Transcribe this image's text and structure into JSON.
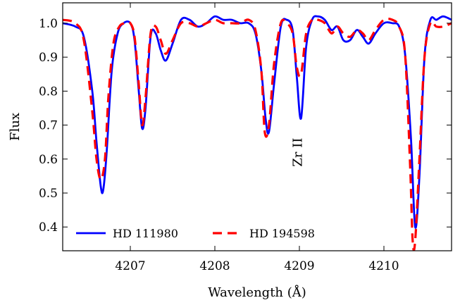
{
  "chart_data": {
    "type": "line",
    "xlabel": "Wavelength (Å)",
    "ylabel": "Flux",
    "xlim": [
      4206.2,
      4210.8
    ],
    "ylim": [
      0.33,
      1.06
    ],
    "xticks": [
      4207,
      4208,
      4209,
      4210
    ],
    "xtick_labels": [
      "4207",
      "4208",
      "4209",
      "4210"
    ],
    "yticks": [
      0.4,
      0.5,
      0.6,
      0.7,
      0.8,
      0.9,
      1.0
    ],
    "ytick_labels": [
      "0.4",
      "0.5",
      "0.6",
      "0.7",
      "0.8",
      "0.9",
      "1.0"
    ],
    "grid": false,
    "legend_position": "bottom",
    "annotation": {
      "text": "Zr II",
      "x": 4208.98,
      "y": 0.62
    },
    "series": [
      {
        "name": "HD 111980",
        "color": "#0000ff",
        "style": "solid",
        "x": [
          4206.2,
          4206.35,
          4206.45,
          4206.55,
          4206.6,
          4206.65,
          4206.68,
          4206.72,
          4206.78,
          4206.85,
          4206.92,
          4207.0,
          4207.05,
          4207.1,
          4207.14,
          4207.18,
          4207.24,
          4207.3,
          4207.36,
          4207.42,
          4207.5,
          4207.6,
          4207.7,
          4207.8,
          4207.9,
          4208.0,
          4208.1,
          4208.2,
          4208.3,
          4208.4,
          4208.48,
          4208.55,
          4208.6,
          4208.64,
          4208.7,
          4208.78,
          4208.85,
          4208.92,
          4208.97,
          4209.02,
          4209.08,
          4209.15,
          4209.22,
          4209.3,
          4209.38,
          4209.45,
          4209.52,
          4209.6,
          4209.68,
          4209.75,
          4209.82,
          4209.9,
          4210.0,
          4210.1,
          4210.18,
          4210.25,
          4210.32,
          4210.37,
          4210.42,
          4210.48,
          4210.55,
          4210.62,
          4210.7,
          4210.8
        ],
        "y": [
          1.0,
          0.99,
          0.96,
          0.8,
          0.65,
          0.52,
          0.51,
          0.62,
          0.86,
          0.97,
          1.0,
          1.0,
          0.95,
          0.8,
          0.69,
          0.75,
          0.96,
          0.97,
          0.92,
          0.89,
          0.94,
          1.01,
          1.01,
          0.99,
          1.0,
          1.02,
          1.01,
          1.01,
          1.0,
          1.0,
          0.97,
          0.86,
          0.72,
          0.68,
          0.82,
          0.99,
          1.01,
          0.98,
          0.84,
          0.72,
          0.93,
          1.01,
          1.02,
          1.01,
          0.98,
          0.99,
          0.95,
          0.95,
          0.98,
          0.96,
          0.94,
          0.97,
          1.0,
          1.0,
          0.99,
          0.91,
          0.66,
          0.4,
          0.55,
          0.9,
          1.01,
          1.01,
          1.02,
          1.01
        ]
      },
      {
        "name": "HD 194598",
        "color": "#ff0000",
        "style": "dashed",
        "x": [
          4206.2,
          4206.35,
          4206.45,
          4206.55,
          4206.6,
          4206.65,
          4206.7,
          4206.74,
          4206.8,
          4206.87,
          4206.94,
          4207.0,
          4207.05,
          4207.1,
          4207.14,
          4207.18,
          4207.24,
          4207.3,
          4207.36,
          4207.42,
          4207.5,
          4207.6,
          4207.7,
          4207.8,
          4207.9,
          4208.0,
          4208.1,
          4208.2,
          4208.3,
          4208.4,
          4208.48,
          4208.55,
          4208.59,
          4208.64,
          4208.7,
          4208.78,
          4208.85,
          4208.92,
          4208.97,
          4209.02,
          4209.08,
          4209.15,
          4209.22,
          4209.3,
          4209.38,
          4209.45,
          4209.52,
          4209.6,
          4209.68,
          4209.75,
          4209.82,
          4209.9,
          4210.0,
          4210.1,
          4210.18,
          4210.25,
          4210.31,
          4210.34,
          4210.37,
          4210.42,
          4210.48,
          4210.55,
          4210.62,
          4210.7,
          4210.8
        ],
        "y": [
          1.01,
          1.0,
          0.95,
          0.74,
          0.6,
          0.54,
          0.6,
          0.78,
          0.94,
          0.99,
          1.0,
          1.0,
          0.96,
          0.82,
          0.7,
          0.78,
          0.97,
          0.99,
          0.95,
          0.91,
          0.95,
          1.0,
          1.0,
          0.99,
          1.0,
          1.01,
          1.0,
          1.0,
          1.0,
          1.01,
          0.98,
          0.86,
          0.68,
          0.7,
          0.88,
          1.0,
          1.0,
          0.97,
          0.87,
          0.85,
          0.97,
          1.01,
          1.01,
          1.0,
          0.97,
          0.99,
          0.97,
          0.96,
          0.98,
          0.97,
          0.95,
          0.98,
          1.01,
          1.01,
          0.99,
          0.91,
          0.58,
          0.36,
          0.36,
          0.6,
          0.9,
          1.0,
          0.99,
          0.99,
          1.0
        ]
      }
    ]
  }
}
